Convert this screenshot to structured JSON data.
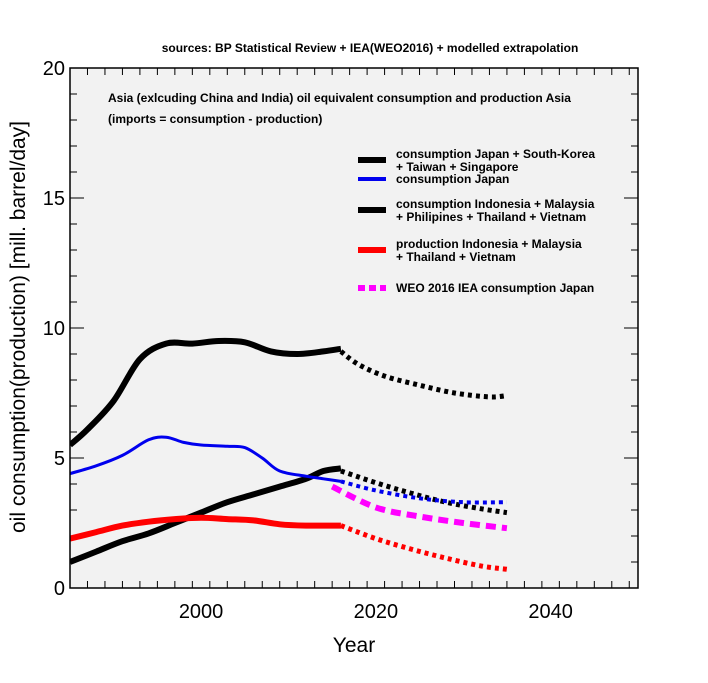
{
  "chart_data": {
    "type": "line",
    "title": "sources: BP Statistical Review + IEA(WEO2016) + modelled extrapolation",
    "annotation": [
      "Asia (exlcuding China and India) oil equivalent consumption and production Asia",
      "(imports = consumption - production)"
    ],
    "xlabel": "Year",
    "ylabel": "oil consumption(production) [mill. barrel/day]",
    "xlim": [
      1985,
      2050
    ],
    "ylim": [
      0,
      20
    ],
    "x_ticks": [
      2000,
      2020,
      2040
    ],
    "x_tick_labels": [
      "2000",
      "2020",
      "2040"
    ],
    "y_ticks": [
      0,
      5,
      10,
      15,
      20
    ],
    "y_tick_labels": [
      "0",
      "5",
      "10",
      "15",
      "20"
    ],
    "legend_position": "top-right",
    "background": "#f2f2f2",
    "series": [
      {
        "name": "consumption Japan + South-Korea + Taiwan + Singapore",
        "legend_lines": [
          "consumption Japan + South-Korea",
          "+ Taiwan + Singapore"
        ],
        "color": "#000000",
        "in_legend": true,
        "style": "solid",
        "x": [
          1985,
          1987,
          1990,
          1993,
          1996,
          1999,
          2002,
          2005,
          2008,
          2011,
          2014,
          2016
        ],
        "values": [
          5.5,
          6.1,
          7.2,
          8.8,
          9.4,
          9.4,
          9.5,
          9.45,
          9.1,
          9.0,
          9.1,
          9.2
        ]
      },
      {
        "name": "consumption Japan + South-Korea + Taiwan + Singapore (extrapolation)",
        "color": "#000000",
        "in_legend": false,
        "style": "dotted",
        "x": [
          2016,
          2018,
          2021,
          2025,
          2029,
          2033,
          2035
        ],
        "values": [
          9.1,
          8.6,
          8.15,
          7.8,
          7.5,
          7.35,
          7.4
        ]
      },
      {
        "name": "consumption Japan",
        "legend_lines": [
          "consumption Japan"
        ],
        "color": "#0000ee",
        "in_legend": true,
        "style": "solid",
        "x": [
          1985,
          1988,
          1991,
          1994,
          1996,
          1998,
          2000,
          2003,
          2005,
          2007,
          2009,
          2012,
          2014,
          2016
        ],
        "values": [
          4.4,
          4.7,
          5.1,
          5.7,
          5.8,
          5.6,
          5.5,
          5.45,
          5.4,
          5.0,
          4.5,
          4.3,
          4.2,
          4.1
        ]
      },
      {
        "name": "consumption Japan (extrapolation)",
        "color": "#0000ee",
        "in_legend": false,
        "style": "dotted",
        "x": [
          2016,
          2020,
          2025,
          2030,
          2035
        ],
        "values": [
          4.1,
          3.75,
          3.45,
          3.3,
          3.3
        ]
      },
      {
        "name": "consumption Indonesia + Malaysia + Philipines + Thailand + Vietnam",
        "legend_lines": [
          "consumption Indonesia + Malaysia",
          "+ Philipines + Thailand + Vietnam"
        ],
        "color": "#000000",
        "in_legend": true,
        "style": "solid",
        "x": [
          1985,
          1988,
          1991,
          1994,
          1997,
          2000,
          2003,
          2006,
          2009,
          2012,
          2014,
          2016
        ],
        "values": [
          1.0,
          1.4,
          1.8,
          2.1,
          2.5,
          2.9,
          3.3,
          3.6,
          3.9,
          4.2,
          4.5,
          4.6
        ]
      },
      {
        "name": "consumption Indonesia + Malaysia + Philipines + Thailand + Vietnam (extrapolation)",
        "color": "#000000",
        "in_legend": false,
        "style": "dotted",
        "x": [
          2016,
          2020,
          2024,
          2028,
          2032,
          2035
        ],
        "values": [
          4.5,
          4.05,
          3.65,
          3.3,
          3.05,
          2.9
        ]
      },
      {
        "name": "production Indonesia + Malaysia + Thailand + Vietnam",
        "legend_lines": [
          "production Indonesia + Malaysia",
          "+ Thailand + Vietnam"
        ],
        "color": "#ff0000",
        "in_legend": true,
        "style": "solid",
        "x": [
          1985,
          1988,
          1991,
          1994,
          1997,
          2000,
          2003,
          2006,
          2009,
          2012,
          2016
        ],
        "values": [
          1.9,
          2.15,
          2.4,
          2.55,
          2.65,
          2.7,
          2.65,
          2.6,
          2.45,
          2.4,
          2.4
        ]
      },
      {
        "name": "production Indonesia + Malaysia + Thailand + Vietnam (extrapolation)",
        "color": "#ff0000",
        "in_legend": false,
        "style": "dotted",
        "x": [
          2016,
          2020,
          2024,
          2028,
          2032,
          2035
        ],
        "values": [
          2.4,
          1.9,
          1.5,
          1.15,
          0.85,
          0.72
        ]
      },
      {
        "name": "WEO 2016 IEA consumption Japan",
        "legend_lines": [
          "WEO 2016 IEA consumption Japan"
        ],
        "color": "#ff00ff",
        "in_legend": true,
        "style": "dashed",
        "x": [
          2015,
          2020,
          2025,
          2030,
          2035
        ],
        "values": [
          3.9,
          3.1,
          2.75,
          2.5,
          2.3
        ]
      }
    ]
  }
}
